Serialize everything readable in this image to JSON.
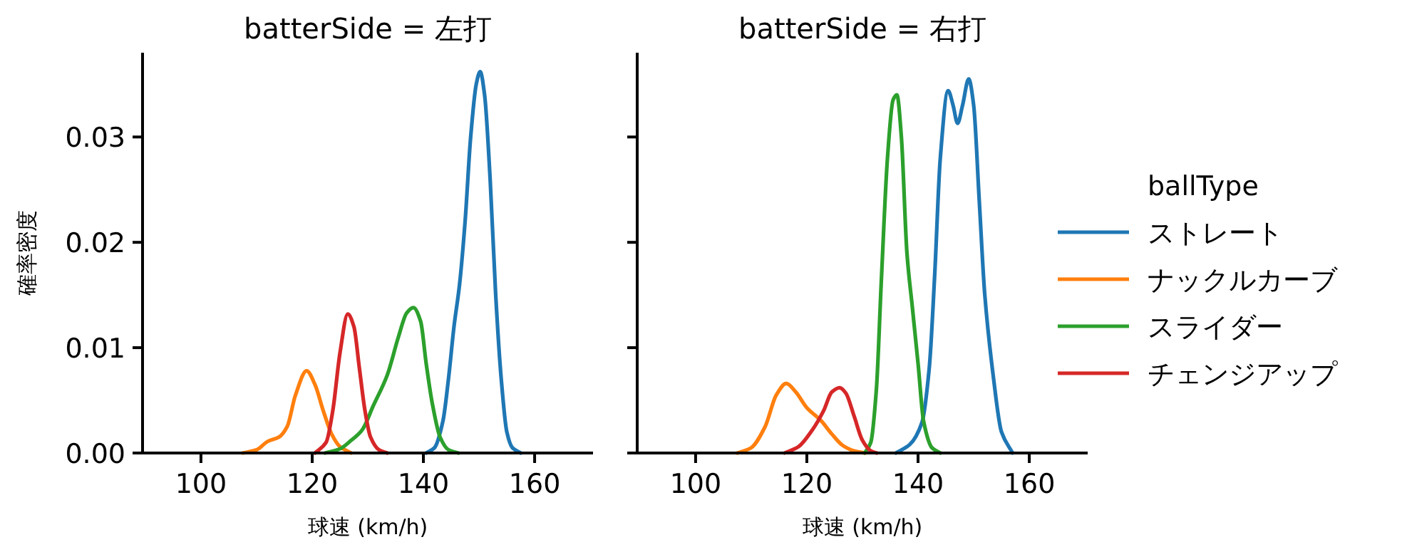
{
  "chart_data": [
    {
      "type": "line",
      "title": "batterSide = 左打",
      "xlabel": "球速 (km/h)",
      "ylabel": "確率密度",
      "xlim": [
        89.5,
        170.5
      ],
      "ylim": [
        0,
        0.038
      ],
      "xticks": [
        100,
        120,
        140,
        160
      ],
      "yticks": [
        {
          "value": 0,
          "label": "0.00"
        },
        {
          "value": 0.01,
          "label": "0.01"
        },
        {
          "value": 0.02,
          "label": "0.02"
        },
        {
          "value": 0.03,
          "label": "0.03"
        }
      ],
      "legend": false,
      "series": [
        {
          "color": "#1f77b4",
          "x": [
            140.5,
            142,
            143.5,
            144.5,
            145.5,
            146.5,
            147.5,
            148.5,
            149.5,
            150.2,
            151,
            152,
            153,
            154,
            155,
            156,
            157.5
          ],
          "values": [
            0,
            0.0005,
            0.003,
            0.007,
            0.012,
            0.016,
            0.022,
            0.03,
            0.035,
            0.0362,
            0.034,
            0.026,
            0.015,
            0.007,
            0.002,
            0.0005,
            0
          ]
        },
        {
          "color": "#ff7f0e",
          "x": [
            107.5,
            110,
            112,
            114,
            115.5,
            117,
            119,
            120.5,
            122,
            123.5,
            125,
            127
          ],
          "values": [
            0,
            0.0003,
            0.0011,
            0.0015,
            0.0025,
            0.0055,
            0.0078,
            0.0065,
            0.004,
            0.0018,
            0.0006,
            0
          ]
        },
        {
          "color": "#2ca02c",
          "x": [
            122.3,
            125,
            127,
            129,
            131,
            133.5,
            135.5,
            137,
            138.2,
            139.5,
            140.5,
            141.6,
            143,
            144.5,
            146.3
          ],
          "values": [
            0,
            0.0004,
            0.0012,
            0.0022,
            0.0045,
            0.0074,
            0.011,
            0.0133,
            0.0138,
            0.0125,
            0.0085,
            0.0047,
            0.0015,
            0.0003,
            0
          ]
        },
        {
          "color": "#d62728",
          "x": [
            120.5,
            122.5,
            123.7,
            125,
            126.4,
            127.5,
            128.5,
            129.5,
            130.5,
            132,
            133.5
          ],
          "values": [
            0,
            0.001,
            0.004,
            0.0095,
            0.0132,
            0.012,
            0.008,
            0.004,
            0.0015,
            0.0003,
            0
          ]
        }
      ]
    },
    {
      "type": "line",
      "title": "batterSide = 右打",
      "xlabel": "球速 (km/h)",
      "xlim": [
        89.5,
        170.5
      ],
      "ylim": [
        0,
        0.038
      ],
      "xticks": [
        100,
        120,
        140,
        160
      ],
      "yticks": [
        {
          "value": 0,
          "label": null
        },
        {
          "value": 0.01,
          "label": null
        },
        {
          "value": 0.02,
          "label": null
        },
        {
          "value": 0.03,
          "label": null
        }
      ],
      "tick_labels": "x",
      "legend": "right",
      "legend_title": "ballType",
      "series": [
        {
          "name": "ストレート",
          "color": "#1f77b4",
          "x": [
            136,
            138.5,
            140.7,
            142,
            143,
            144,
            145.4,
            146.3,
            147.1,
            148,
            149.1,
            150,
            151,
            152,
            153.5,
            155,
            157
          ],
          "values": [
            0,
            0.0008,
            0.0029,
            0.008,
            0.017,
            0.028,
            0.0344,
            0.033,
            0.0313,
            0.033,
            0.0355,
            0.033,
            0.024,
            0.015,
            0.0074,
            0.002,
            0
          ]
        },
        {
          "name": "ナックルカーブ",
          "color": "#ff7f0e",
          "x": [
            107.5,
            110,
            112.5,
            114.5,
            116.3,
            118,
            120,
            122.5,
            124.5,
            126.5,
            128.5,
            130.5
          ],
          "values": [
            0,
            0.0005,
            0.0025,
            0.0055,
            0.0066,
            0.0058,
            0.0043,
            0.0031,
            0.0018,
            0.0007,
            0.0002,
            0
          ]
        },
        {
          "name": "スライダー",
          "color": "#2ca02c",
          "x": [
            130.4,
            131.5,
            132.5,
            133.4,
            134.5,
            135.5,
            136.2,
            137,
            138,
            139,
            140,
            141,
            142.5,
            144
          ],
          "values": [
            0,
            0.001,
            0.006,
            0.0164,
            0.028,
            0.0335,
            0.034,
            0.03,
            0.019,
            0.0137,
            0.0085,
            0.003,
            0.0005,
            0
          ]
        },
        {
          "name": "チェンジアップ",
          "color": "#d62728",
          "x": [
            116,
            118.5,
            121,
            123,
            124.5,
            125.9,
            127,
            128.5,
            130,
            131.5,
            132.6
          ],
          "values": [
            0,
            0.0006,
            0.0022,
            0.004,
            0.0058,
            0.0062,
            0.0057,
            0.0035,
            0.0012,
            0.0002,
            0
          ]
        }
      ]
    }
  ]
}
